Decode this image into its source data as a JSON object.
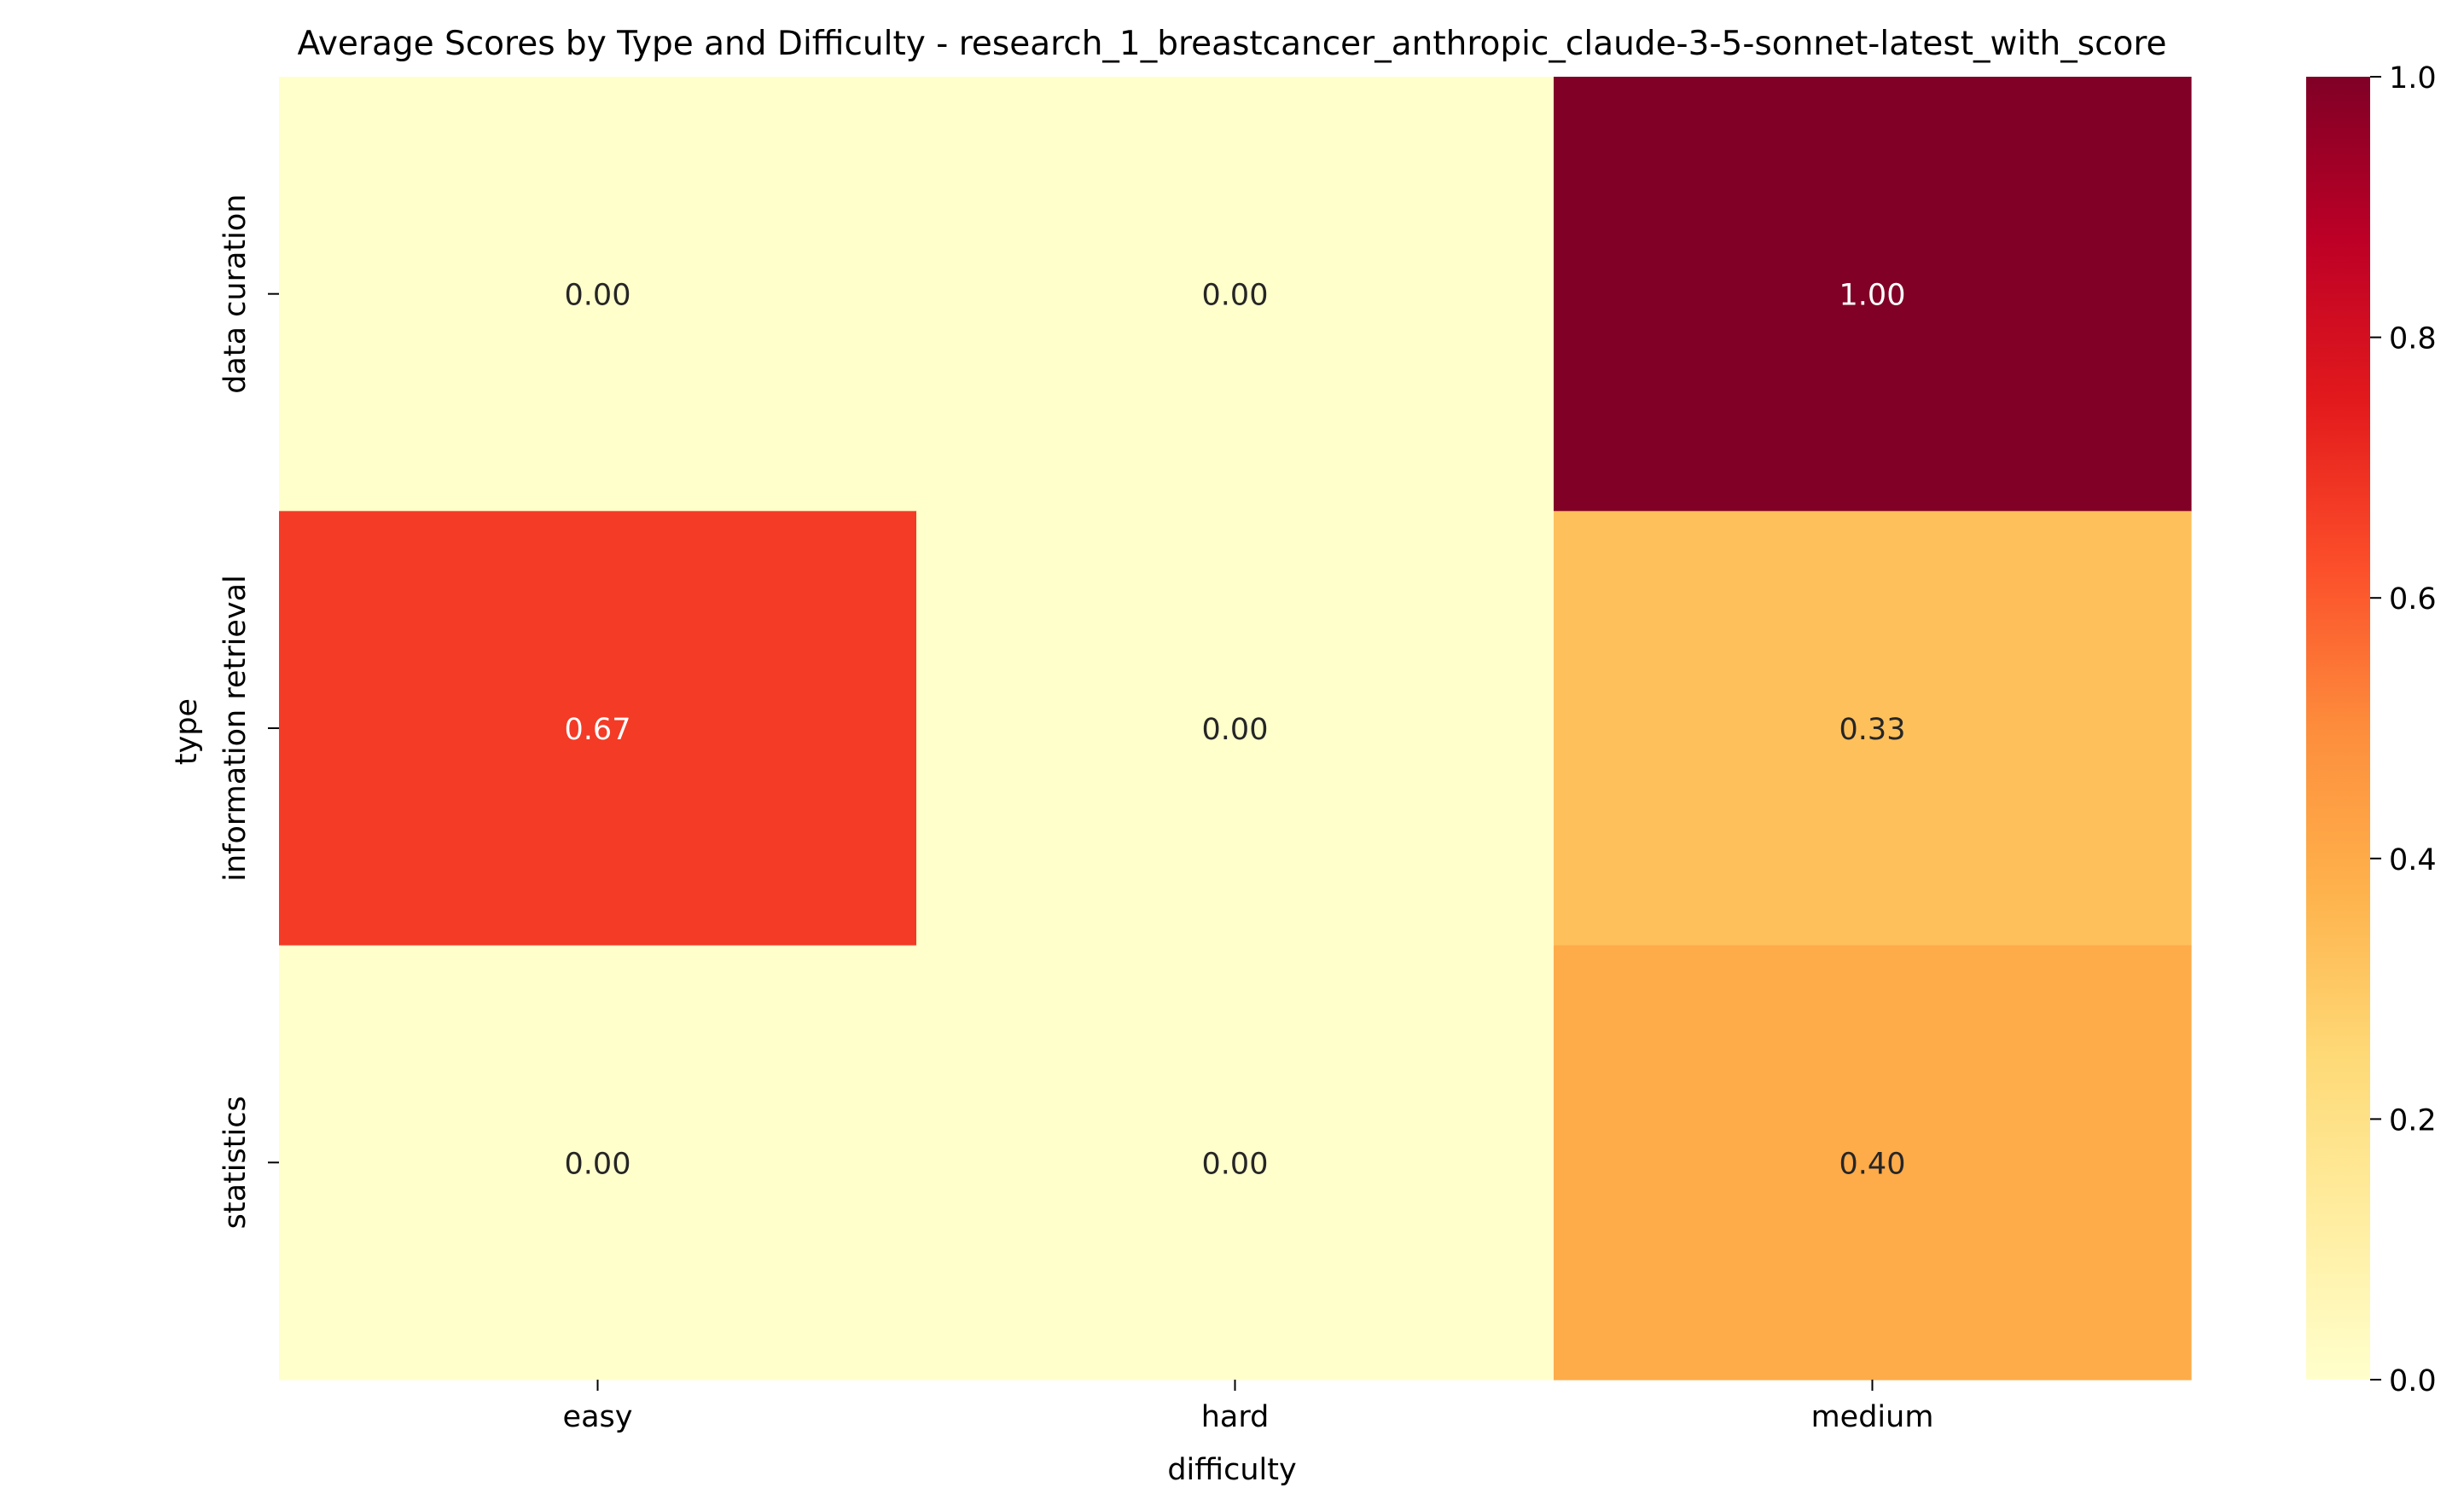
{
  "chart_data": {
    "type": "heatmap",
    "title": "Average Scores by Type and Difficulty - research_1_breastcancer_anthropic_claude-3-5-sonnet-latest_with_score",
    "xlabel": "difficulty",
    "ylabel": "type",
    "x_categories": [
      "easy",
      "hard",
      "medium"
    ],
    "y_categories": [
      "data curation",
      "information retrieval",
      "statistics"
    ],
    "values": [
      [
        0.0,
        0.0,
        1.0
      ],
      [
        0.67,
        0.0,
        0.33
      ],
      [
        0.0,
        0.0,
        0.4
      ]
    ],
    "cell_labels": [
      [
        "0.00",
        "0.00",
        "1.00"
      ],
      [
        "0.67",
        "0.00",
        "0.33"
      ],
      [
        "0.00",
        "0.00",
        "0.40"
      ]
    ],
    "colormap": "YlOrRd",
    "vmin": 0.0,
    "vmax": 1.0,
    "colorbar_ticks": [
      {
        "value": 0.0,
        "label": "0.0"
      },
      {
        "value": 0.2,
        "label": "0.2"
      },
      {
        "value": 0.4,
        "label": "0.4"
      },
      {
        "value": 0.6,
        "label": "0.6"
      },
      {
        "value": 0.8,
        "label": "0.8"
      },
      {
        "value": 1.0,
        "label": "1.0"
      }
    ],
    "colors": {
      "stops": [
        "#ffffcc",
        "#ffeda0",
        "#fed976",
        "#feb24c",
        "#fd8d3c",
        "#fc4e2a",
        "#e31a1c",
        "#bd0026",
        "#800026"
      ],
      "text_dark": "#262626",
      "text_light": "#ffffff",
      "axis": "#000000"
    },
    "grid": false,
    "legend": "colorbar-right"
  }
}
